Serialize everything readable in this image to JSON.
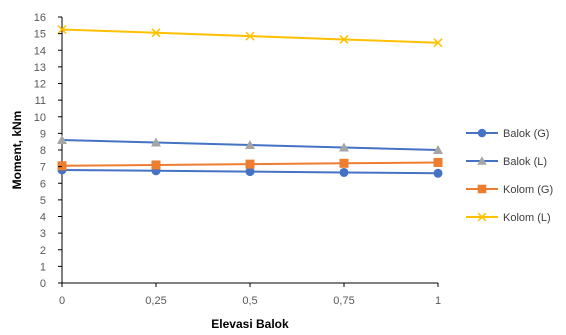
{
  "chart_data": {
    "type": "line",
    "title": "",
    "xlabel": "Elevasi Balok",
    "ylabel": "Moment, kNm",
    "x": [
      0,
      0.25,
      0.5,
      0.75,
      1
    ],
    "x_tick_labels": [
      "0",
      "0,25",
      "0,5",
      "0,75",
      "1"
    ],
    "ylim": [
      0,
      16
    ],
    "y_ticks": [
      0,
      1,
      2,
      3,
      4,
      5,
      6,
      7,
      8,
      9,
      10,
      11,
      12,
      13,
      14,
      15,
      16
    ],
    "grid": false,
    "legend_position": "right",
    "series": [
      {
        "name": "Balok (G)",
        "color": "#4472C4",
        "marker": "circle",
        "values": [
          6.8,
          6.75,
          6.7,
          6.65,
          6.6
        ]
      },
      {
        "name": "Balok (L)",
        "color": "#4472C4",
        "marker": "triangle",
        "values": [
          8.6,
          8.45,
          8.3,
          8.15,
          8.0
        ]
      },
      {
        "name": "Kolom (G)",
        "color": "#ED7D31",
        "marker": "square",
        "values": [
          7.05,
          7.1,
          7.15,
          7.2,
          7.25
        ]
      },
      {
        "name": "Kolom (L)",
        "color": "#FFC000",
        "marker": "x",
        "values": [
          15.25,
          15.05,
          14.85,
          14.65,
          14.45
        ]
      }
    ]
  }
}
